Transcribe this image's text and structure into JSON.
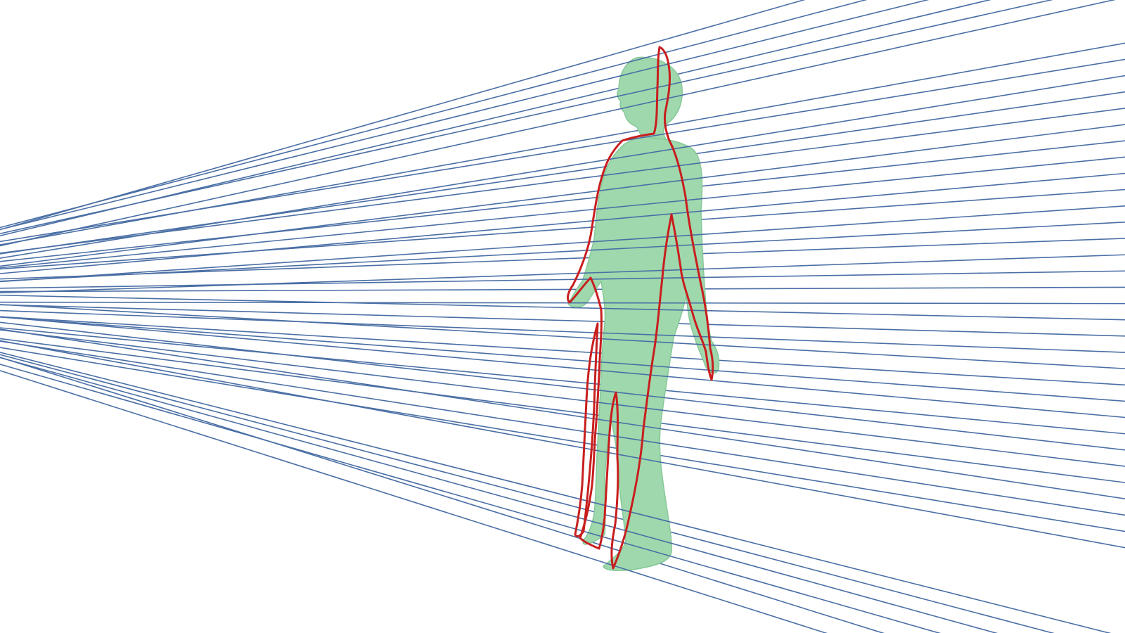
{
  "scene": {
    "background": "#ffffff",
    "ray_color": "#4a6fa5",
    "body_color": "#9fd8ad",
    "body_shade_color": "#86c898",
    "contour_color": "#c81e1e",
    "ray_count": 44,
    "icons": {
      "rays": "projection-rays",
      "figure": "human-body-mesh",
      "contour": "silhouette-contour"
    }
  }
}
